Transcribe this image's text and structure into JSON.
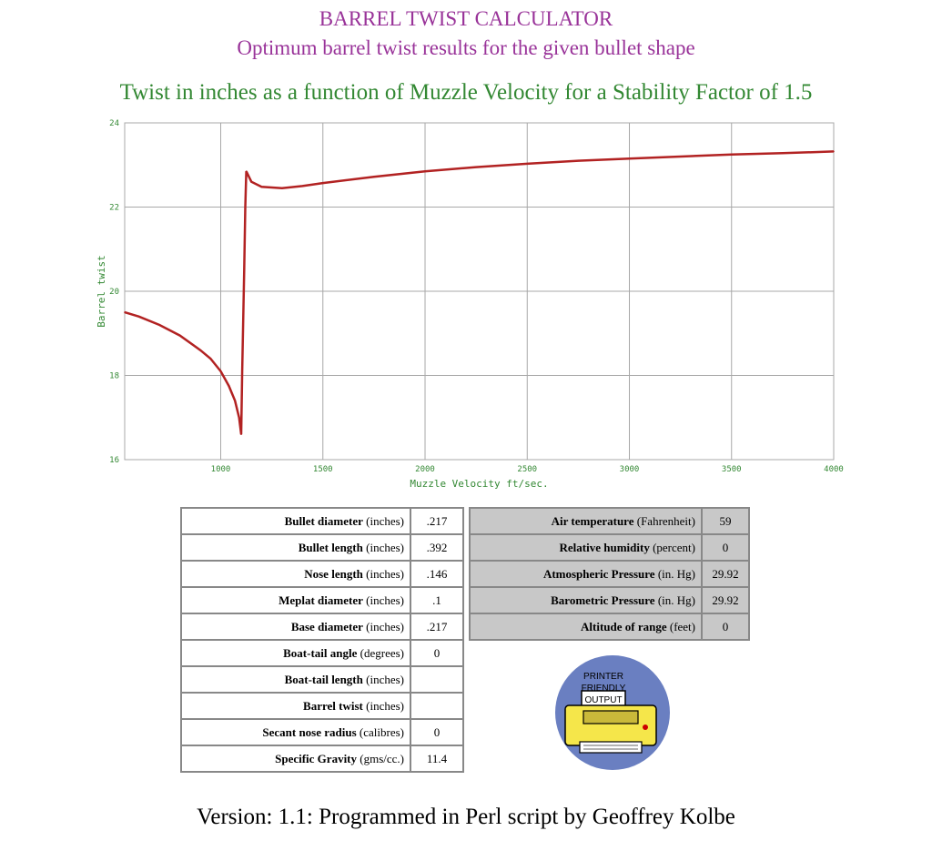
{
  "header": {
    "title": "BARREL TWIST CALCULATOR",
    "subtitle": "Optimum barrel twist results for the given bullet shape",
    "chart_title": "Twist in inches as a function of Muzzle Velocity for a Stability Factor of 1.5"
  },
  "chart_data": {
    "type": "line",
    "title": "Twist in inches as a function of Muzzle Velocity for a Stability Factor of 1.5",
    "xlabel": "Muzzle Velocity ft/sec.",
    "ylabel": "Barrel twist",
    "xlim": [
      530,
      4000
    ],
    "ylim": [
      16,
      24
    ],
    "x_ticks": [
      1000,
      1500,
      2000,
      2500,
      3000,
      3500,
      4000
    ],
    "y_ticks": [
      16,
      18,
      20,
      22,
      24
    ],
    "grid": true,
    "series": [
      {
        "color": "#b22222",
        "points": [
          [
            530,
            19.5
          ],
          [
            600,
            19.4
          ],
          [
            700,
            19.2
          ],
          [
            800,
            18.95
          ],
          [
            900,
            18.6
          ],
          [
            950,
            18.4
          ],
          [
            1000,
            18.1
          ],
          [
            1040,
            17.75
          ],
          [
            1070,
            17.4
          ],
          [
            1090,
            17.0
          ],
          [
            1100,
            16.6
          ],
          [
            1105,
            18.1
          ],
          [
            1115,
            20.5
          ],
          [
            1120,
            22.0
          ],
          [
            1125,
            22.85
          ],
          [
            1150,
            22.6
          ],
          [
            1200,
            22.48
          ],
          [
            1300,
            22.45
          ],
          [
            1400,
            22.5
          ],
          [
            1500,
            22.57
          ],
          [
            1750,
            22.72
          ],
          [
            2000,
            22.85
          ],
          [
            2250,
            22.95
          ],
          [
            2500,
            23.03
          ],
          [
            2750,
            23.1
          ],
          [
            3000,
            23.15
          ],
          [
            3250,
            23.2
          ],
          [
            3500,
            23.25
          ],
          [
            3750,
            23.28
          ],
          [
            4000,
            23.32
          ]
        ]
      }
    ],
    "line_color": "#b22222",
    "grid_color": "#a8a8a8",
    "label_color": "#338833"
  },
  "bullet_inputs": [
    {
      "label": "Bullet diameter",
      "unit": "(inches)",
      "value": ".217"
    },
    {
      "label": "Bullet length",
      "unit": "(inches)",
      "value": ".392"
    },
    {
      "label": "Nose length",
      "unit": "(inches)",
      "value": ".146"
    },
    {
      "label": "Meplat diameter",
      "unit": "(inches)",
      "value": ".1"
    },
    {
      "label": "Base diameter",
      "unit": "(inches)",
      "value": ".217"
    },
    {
      "label": "Boat-tail angle",
      "unit": "(degrees)",
      "value": "0"
    },
    {
      "label": "Boat-tail length",
      "unit": "(inches)",
      "value": ""
    },
    {
      "label": "Barrel twist",
      "unit": "(inches)",
      "value": ""
    },
    {
      "label": "Secant nose radius",
      "unit": "(calibres)",
      "value": "0"
    },
    {
      "label": "Specific Gravity",
      "unit": "(gms/cc.)",
      "value": "11.4"
    }
  ],
  "atmosphere_inputs": [
    {
      "label": "Air temperature",
      "unit": "(Fahrenheit)",
      "value": "59"
    },
    {
      "label": "Relative humidity",
      "unit": "(percent)",
      "value": "0"
    },
    {
      "label": "Atmospheric Pressure",
      "unit": "(in. Hg)",
      "value": "29.92"
    },
    {
      "label": "Barometric Pressure",
      "unit": "(in. Hg)",
      "value": "29.92"
    },
    {
      "label": "Altitude of range",
      "unit": "(feet)",
      "value": "0"
    }
  ],
  "printer_button": {
    "line1": "PRINTER",
    "line2": "FRIENDLY",
    "line3": "OUTPUT",
    "icon": "printer-icon",
    "circle_color": "#6a7fc1",
    "printer_color": "#f5e64a"
  },
  "footer": {
    "text": "Version: 1.1: Programmed in Perl script by Geoffrey Kolbe"
  }
}
